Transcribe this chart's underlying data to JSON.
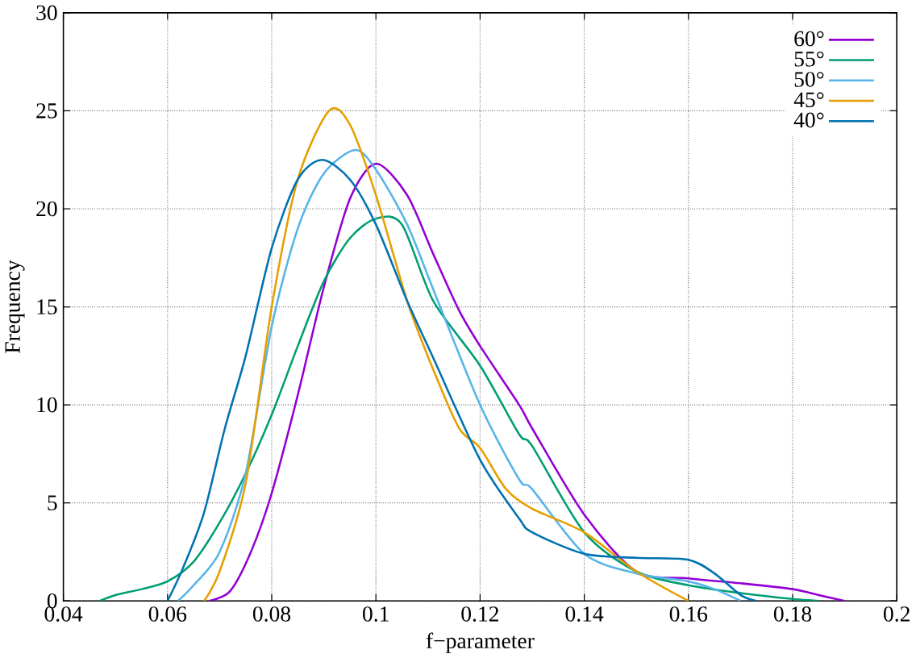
{
  "chart_data": {
    "type": "line",
    "xlabel": "f−parameter",
    "ylabel": "Frequency",
    "xlim": [
      0.04,
      0.2
    ],
    "ylim": [
      0,
      30
    ],
    "xticks": [
      0.04,
      0.06,
      0.08,
      0.1,
      0.12,
      0.14,
      0.16,
      0.18,
      0.2
    ],
    "yticks": [
      0,
      5,
      10,
      15,
      20,
      25,
      30
    ],
    "grid": true,
    "legend": "top right",
    "marker": "none",
    "line_style": "solid",
    "series": [
      {
        "name": "60°",
        "color": "#9400d3",
        "x": [
          0.068,
          0.072,
          0.076,
          0.08,
          0.085,
          0.09,
          0.095,
          0.1,
          0.106,
          0.111,
          0.116,
          0.12,
          0.1275,
          0.13,
          0.14,
          0.15,
          0.16,
          0.17,
          0.18,
          0.185,
          0.19
        ],
        "values": [
          0,
          0.5,
          2.5,
          5.5,
          10.5,
          16,
          20.5,
          22.3,
          20.7,
          17.7,
          14.8,
          13,
          10,
          8.8,
          4.4,
          1.5,
          1.15,
          0.9,
          0.6,
          0.3,
          0
        ]
      },
      {
        "name": "55°",
        "color": "#009e73",
        "x": [
          0.047,
          0.05,
          0.055,
          0.06,
          0.065,
          0.07,
          0.075,
          0.08,
          0.085,
          0.09,
          0.095,
          0.1,
          0.105,
          0.111,
          0.12,
          0.1275,
          0.13,
          0.14,
          0.15,
          0.16,
          0.17,
          0.18,
          0.185
        ],
        "values": [
          0,
          0.3,
          0.6,
          1,
          2,
          4,
          6.5,
          9.5,
          13,
          16.3,
          18.5,
          19.5,
          19.2,
          15.3,
          12,
          8.5,
          7.9,
          3.5,
          1.5,
          0.8,
          0.4,
          0.1,
          0
        ]
      },
      {
        "name": "50°",
        "color": "#56b4e9",
        "x": [
          0.062,
          0.065,
          0.07,
          0.075,
          0.08,
          0.085,
          0.09,
          0.096,
          0.1,
          0.106,
          0.111,
          0.12,
          0.1275,
          0.13,
          0.14,
          0.15,
          0.16,
          0.165,
          0.17
        ],
        "values": [
          0,
          0.8,
          2.5,
          6.5,
          14,
          19,
          21.8,
          23,
          22,
          19.2,
          15.9,
          10,
          6.2,
          5.7,
          2.4,
          1.4,
          1,
          0.6,
          0
        ]
      },
      {
        "name": "45°",
        "color": "#e69f00",
        "x": [
          0.067,
          0.07,
          0.075,
          0.08,
          0.085,
          0.091,
          0.095,
          0.1,
          0.106,
          0.111,
          0.116,
          0.12,
          0.125,
          0.13,
          0.14,
          0.15,
          0.16
        ],
        "values": [
          0,
          1.5,
          6,
          15,
          21.5,
          25,
          24.3,
          20.7,
          15.3,
          11.8,
          8.8,
          7.8,
          5.7,
          4.7,
          3.5,
          1.5,
          0
        ]
      },
      {
        "name": "40°",
        "color": "#0072b2",
        "x": [
          0.06,
          0.063,
          0.067,
          0.071,
          0.075,
          0.08,
          0.085,
          0.0897,
          0.095,
          0.1,
          0.106,
          0.111,
          0.12,
          0.1275,
          0.13,
          0.14,
          0.15,
          0.16,
          0.165,
          0.17,
          0.173
        ],
        "values": [
          0,
          1.7,
          4.5,
          8.8,
          12.5,
          18,
          21.5,
          22.5,
          21.5,
          19.2,
          15.3,
          12.4,
          7.2,
          4.2,
          3.5,
          2.4,
          2.2,
          2.1,
          1.4,
          0.3,
          0
        ]
      }
    ]
  }
}
